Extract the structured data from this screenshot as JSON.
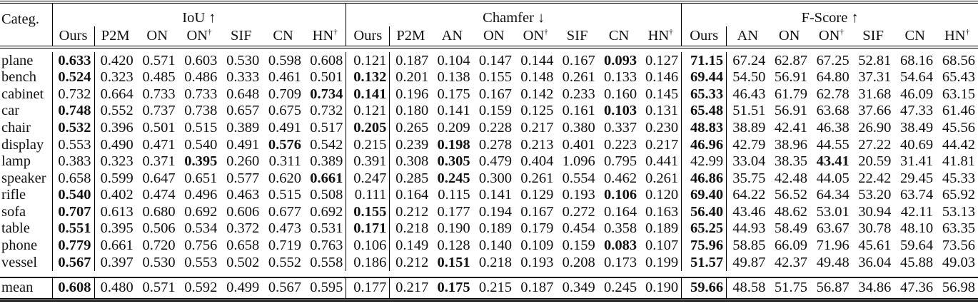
{
  "table": {
    "category_header": "Categ.",
    "groups": [
      {
        "key": "iou",
        "label": "IoU ↑",
        "columns": [
          "Ours",
          "P2M",
          "ON",
          "ON†",
          "SIF",
          "CN",
          "HN†"
        ]
      },
      {
        "key": "chamfer",
        "label": "Chamfer ↓",
        "columns": [
          "Ours",
          "P2M",
          "AN",
          "ON",
          "ON†",
          "SIF",
          "CN",
          "HN†"
        ]
      },
      {
        "key": "fscore",
        "label": "F-Score ↑",
        "columns": [
          "Ours",
          "AN",
          "ON",
          "ON†",
          "SIF",
          "CN",
          "HN†"
        ]
      }
    ],
    "rows": [
      {
        "category": "plane",
        "iou": [
          "0.633",
          "0.420",
          "0.571",
          "0.603",
          "0.530",
          "0.598",
          "0.608"
        ],
        "chamfer": [
          "0.121",
          "0.187",
          "0.104",
          "0.147",
          "0.144",
          "0.167",
          "0.093",
          "0.127"
        ],
        "fscore": [
          "71.15",
          "67.24",
          "62.87",
          "67.25",
          "52.81",
          "68.16",
          "68.56"
        ],
        "bold": {
          "iou": [
            0
          ],
          "chamfer": [
            6
          ],
          "fscore": [
            0
          ]
        }
      },
      {
        "category": "bench",
        "iou": [
          "0.524",
          "0.323",
          "0.485",
          "0.486",
          "0.333",
          "0.461",
          "0.501"
        ],
        "chamfer": [
          "0.132",
          "0.201",
          "0.138",
          "0.155",
          "0.148",
          "0.261",
          "0.133",
          "0.146"
        ],
        "fscore": [
          "69.44",
          "54.50",
          "56.91",
          "64.80",
          "37.31",
          "54.64",
          "65.43"
        ],
        "bold": {
          "iou": [
            0
          ],
          "chamfer": [
            0
          ],
          "fscore": [
            0
          ]
        }
      },
      {
        "category": "cabinet",
        "iou": [
          "0.732",
          "0.664",
          "0.733",
          "0.733",
          "0.648",
          "0.709",
          "0.734"
        ],
        "chamfer": [
          "0.141",
          "0.196",
          "0.175",
          "0.167",
          "0.142",
          "0.233",
          "0.160",
          "0.145"
        ],
        "fscore": [
          "65.33",
          "46.43",
          "61.79",
          "62.78",
          "31.68",
          "46.09",
          "63.15"
        ],
        "bold": {
          "iou": [
            6
          ],
          "chamfer": [
            0
          ],
          "fscore": [
            0
          ]
        }
      },
      {
        "category": "car",
        "iou": [
          "0.748",
          "0.552",
          "0.737",
          "0.738",
          "0.657",
          "0.675",
          "0.732"
        ],
        "chamfer": [
          "0.121",
          "0.180",
          "0.141",
          "0.159",
          "0.125",
          "0.161",
          "0.103",
          "0.131"
        ],
        "fscore": [
          "65.48",
          "51.51",
          "56.91",
          "63.68",
          "37.66",
          "47.33",
          "61.46"
        ],
        "bold": {
          "iou": [
            0
          ],
          "chamfer": [
            6
          ],
          "fscore": [
            0
          ]
        }
      },
      {
        "category": "chair",
        "iou": [
          "0.532",
          "0.396",
          "0.501",
          "0.515",
          "0.389",
          "0.491",
          "0.517"
        ],
        "chamfer": [
          "0.205",
          "0.265",
          "0.209",
          "0.228",
          "0.217",
          "0.380",
          "0.337",
          "0.230"
        ],
        "fscore": [
          "48.83",
          "38.89",
          "42.41",
          "46.38",
          "26.90",
          "38.49",
          "45.56"
        ],
        "bold": {
          "iou": [
            0
          ],
          "chamfer": [
            0
          ],
          "fscore": [
            0
          ]
        }
      },
      {
        "category": "display",
        "iou": [
          "0.553",
          "0.490",
          "0.471",
          "0.540",
          "0.491",
          "0.576",
          "0.542"
        ],
        "chamfer": [
          "0.215",
          "0.239",
          "0.198",
          "0.278",
          "0.213",
          "0.401",
          "0.223",
          "0.217"
        ],
        "fscore": [
          "46.96",
          "42.79",
          "38.96",
          "44.55",
          "27.22",
          "40.69",
          "44.42"
        ],
        "bold": {
          "iou": [
            5
          ],
          "chamfer": [
            2
          ],
          "fscore": [
            0
          ]
        }
      },
      {
        "category": "lamp",
        "iou": [
          "0.383",
          "0.323",
          "0.371",
          "0.395",
          "0.260",
          "0.311",
          "0.389"
        ],
        "chamfer": [
          "0.391",
          "0.308",
          "0.305",
          "0.479",
          "0.404",
          "1.096",
          "0.795",
          "0.441"
        ],
        "fscore": [
          "42.99",
          "33.04",
          "38.35",
          "43.41",
          "20.59",
          "31.41",
          "41.81"
        ],
        "bold": {
          "iou": [
            3
          ],
          "chamfer": [
            2
          ],
          "fscore": [
            3
          ]
        }
      },
      {
        "category": "speaker",
        "iou": [
          "0.658",
          "0.599",
          "0.647",
          "0.651",
          "0.577",
          "0.620",
          "0.661"
        ],
        "chamfer": [
          "0.247",
          "0.285",
          "0.245",
          "0.300",
          "0.261",
          "0.554",
          "0.462",
          "0.261"
        ],
        "fscore": [
          "46.86",
          "35.75",
          "42.48",
          "44.05",
          "22.42",
          "29.45",
          "45.33"
        ],
        "bold": {
          "iou": [
            6
          ],
          "chamfer": [
            2
          ],
          "fscore": [
            0
          ]
        }
      },
      {
        "category": "rifle",
        "iou": [
          "0.540",
          "0.402",
          "0.474",
          "0.496",
          "0.463",
          "0.515",
          "0.508"
        ],
        "chamfer": [
          "0.111",
          "0.164",
          "0.115",
          "0.141",
          "0.129",
          "0.193",
          "0.106",
          "0.120"
        ],
        "fscore": [
          "69.40",
          "64.22",
          "56.52",
          "64.34",
          "53.20",
          "63.74",
          "65.92"
        ],
        "bold": {
          "iou": [
            0
          ],
          "chamfer": [
            6
          ],
          "fscore": [
            0
          ]
        }
      },
      {
        "category": "sofa",
        "iou": [
          "0.707",
          "0.613",
          "0.680",
          "0.692",
          "0.606",
          "0.677",
          "0.692"
        ],
        "chamfer": [
          "0.155",
          "0.212",
          "0.177",
          "0.194",
          "0.167",
          "0.272",
          "0.164",
          "0.163"
        ],
        "fscore": [
          "56.40",
          "43.46",
          "48.62",
          "53.01",
          "30.94",
          "42.11",
          "53.13"
        ],
        "bold": {
          "iou": [
            0
          ],
          "chamfer": [
            0
          ],
          "fscore": [
            0
          ]
        }
      },
      {
        "category": "table",
        "iou": [
          "0.551",
          "0.395",
          "0.506",
          "0.534",
          "0.372",
          "0.473",
          "0.531"
        ],
        "chamfer": [
          "0.171",
          "0.218",
          "0.190",
          "0.189",
          "0.179",
          "0.454",
          "0.358",
          "0.189"
        ],
        "fscore": [
          "65.25",
          "44.93",
          "58.49",
          "63.67",
          "30.78",
          "48.10",
          "63.35"
        ],
        "bold": {
          "iou": [
            0
          ],
          "chamfer": [
            0
          ],
          "fscore": [
            0
          ]
        }
      },
      {
        "category": "phone",
        "iou": [
          "0.779",
          "0.661",
          "0.720",
          "0.756",
          "0.658",
          "0.719",
          "0.763"
        ],
        "chamfer": [
          "0.106",
          "0.149",
          "0.128",
          "0.140",
          "0.109",
          "0.159",
          "0.083",
          "0.107"
        ],
        "fscore": [
          "75.96",
          "58.85",
          "66.09",
          "71.96",
          "45.61",
          "59.64",
          "73.56"
        ],
        "bold": {
          "iou": [
            0
          ],
          "chamfer": [
            6
          ],
          "fscore": [
            0
          ]
        }
      },
      {
        "category": "vessel",
        "iou": [
          "0.567",
          "0.397",
          "0.530",
          "0.553",
          "0.502",
          "0.552",
          "0.558"
        ],
        "chamfer": [
          "0.186",
          "0.212",
          "0.151",
          "0.218",
          "0.193",
          "0.208",
          "0.173",
          "0.199"
        ],
        "fscore": [
          "51.57",
          "49.87",
          "42.37",
          "49.48",
          "36.04",
          "45.88",
          "49.03"
        ],
        "bold": {
          "iou": [
            0
          ],
          "chamfer": [
            2
          ],
          "fscore": [
            0
          ]
        }
      }
    ],
    "mean": {
      "category": "mean",
      "iou": [
        "0.608",
        "0.480",
        "0.571",
        "0.592",
        "0.499",
        "0.567",
        "0.595"
      ],
      "chamfer": [
        "0.177",
        "0.217",
        "0.175",
        "0.215",
        "0.187",
        "0.349",
        "0.245",
        "0.190"
      ],
      "fscore": [
        "59.66",
        "48.58",
        "51.75",
        "56.87",
        "34.86",
        "47.36",
        "56.98"
      ],
      "bold": {
        "iou": [
          0
        ],
        "chamfer": [
          2
        ],
        "fscore": [
          0
        ]
      }
    }
  }
}
